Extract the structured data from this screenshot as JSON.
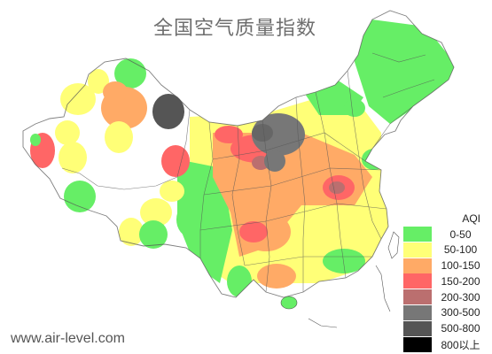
{
  "map": {
    "title": "全国空气质量指数",
    "watermark": "www.air-level.com",
    "legend": {
      "title": "AQI",
      "items": [
        {
          "label": "0-50",
          "color": "#66ee66"
        },
        {
          "label": "50-100",
          "color": "#ffff77"
        },
        {
          "label": "100-150",
          "color": "#ffaa66"
        },
        {
          "label": "150-200",
          "color": "#ff6666"
        },
        {
          "label": "200-300",
          "color": "#bb6f6f"
        },
        {
          "label": "300-500",
          "color": "#777777"
        },
        {
          "label": "500-800",
          "color": "#555555"
        },
        {
          "label": "800以上",
          "color": "#000000"
        }
      ]
    }
  }
}
